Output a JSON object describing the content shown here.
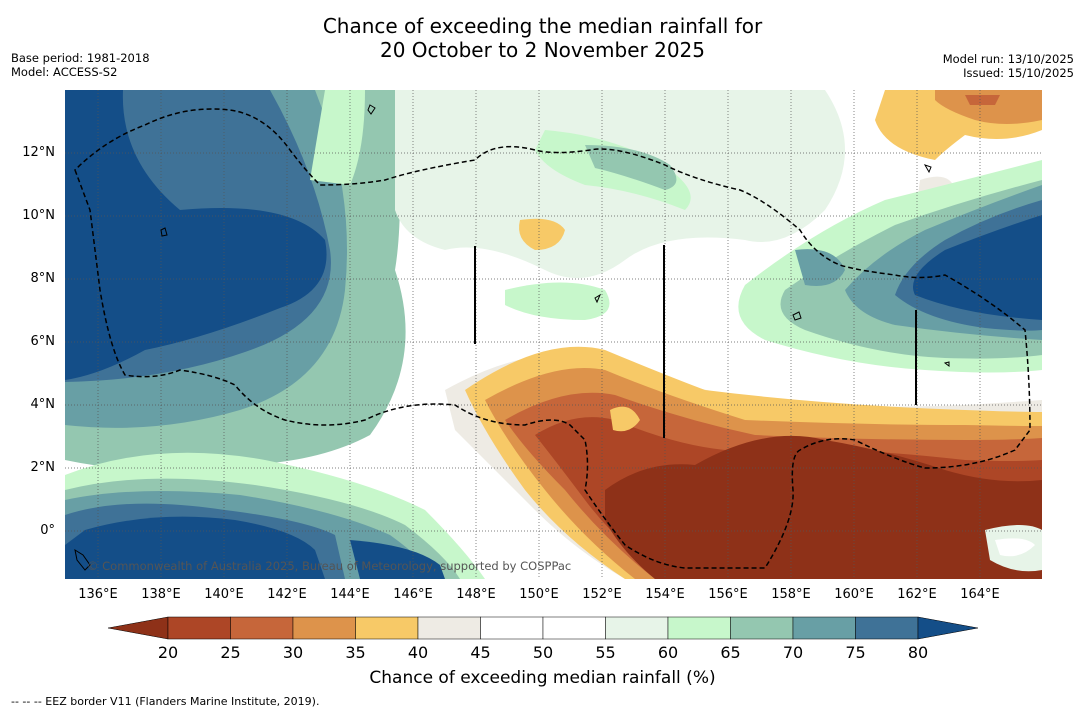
{
  "header": {
    "title_line1": "Chance of exceeding the median rainfall for",
    "title_line2": "20 October to 2 November 2025",
    "base_period": "Base period: 1981-2018",
    "model": "Model: ACCESS-S2",
    "model_run": "Model run: 13/10/2025",
    "issued": "Issued: 15/10/2025"
  },
  "map": {
    "copyright": "© Commonwealth of Australia 2025, Bureau of Meteorology, supported by COSPPac",
    "lat_labels": [
      "12°N",
      "10°N",
      "8°N",
      "6°N",
      "4°N",
      "2°N",
      "0°"
    ],
    "lon_labels": [
      "136°E",
      "138°E",
      "140°E",
      "142°E",
      "144°E",
      "146°E",
      "148°E",
      "150°E",
      "152°E",
      "154°E",
      "156°E",
      "158°E",
      "160°E",
      "162°E",
      "164°E"
    ]
  },
  "colorbar": {
    "title": "Chance of exceeding median rainfall (%)",
    "labels": [
      "20",
      "25",
      "30",
      "35",
      "40",
      "45",
      "50",
      "55",
      "60",
      "65",
      "70",
      "75",
      "80"
    ],
    "colors": {
      "below20": "#8e3118",
      "c20_25": "#ad4626",
      "c25_30": "#c6663a",
      "c30_35": "#dd934b",
      "c35_40": "#f7c967",
      "c40_45": "#eeebe4",
      "c45_50": "#ffffff",
      "c50_55": "#ffffff",
      "c55_60": "#e7f4e8",
      "c60_65": "#c7f7cb",
      "c65_70": "#94c7b0",
      "c70_75": "#689fa5",
      "c75_80": "#3f7297",
      "above80": "#144e88"
    }
  },
  "footnote": "--  --  -- EEZ border V11 (Flanders Marine Institute, 2019)."
}
